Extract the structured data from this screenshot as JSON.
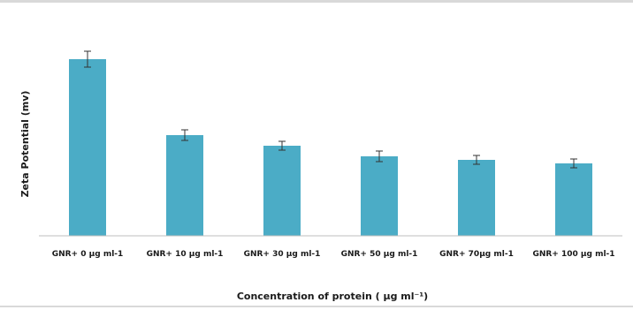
{
  "chart_data": {
    "type": "bar",
    "title": "",
    "xlabel": "Concentration of protein ( μg ml⁻¹)",
    "ylabel": "Zeta Potential (mv)",
    "categories": [
      "GNR+ 0 μg ml-1",
      "GNR+ 10 μg ml-1",
      "GNR+ 30 μg ml-1",
      "GNR+ 50 μg ml-1",
      "GNR+ 70μg ml-1",
      "GNR+ 100 μg ml-1"
    ],
    "values": [
      100,
      57,
      51,
      45,
      43,
      41
    ],
    "errors": [
      4.5,
      3,
      2.5,
      3,
      2.5,
      2.5
    ],
    "ylim": [
      0,
      110
    ],
    "grid": false,
    "color": "#4bacc6"
  }
}
